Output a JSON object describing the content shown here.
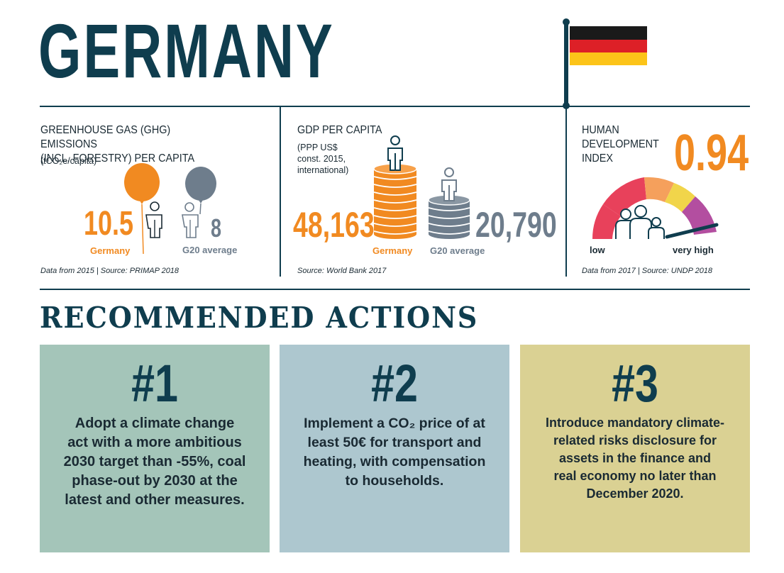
{
  "title": "GERMANY",
  "colors": {
    "navy": "#0f3d4e",
    "orange": "#f18a21",
    "grey": "#6e7d8c"
  },
  "ghg": {
    "heading": "GREENHOUSE GAS (GHG) EMISSIONS\n(INCL. FORESTRY) PER CAPITA",
    "unit": "(tCO₂e/capita)",
    "germany_value": "10.5",
    "germany_label": "Germany",
    "g20_value": "8",
    "g20_label": "G20 average",
    "source": "Data from 2015 | Source: PRIMAP 2018"
  },
  "gdp": {
    "heading": "GDP PER CAPITA",
    "unit": "(PPP US$\nconst. 2015,\ninternational)",
    "germany_value": "48,163",
    "germany_label": "Germany",
    "g20_value": "20,790",
    "g20_label": "G20 average",
    "source": "Source: World Bank 2017"
  },
  "hdi": {
    "heading": "HUMAN\nDEVELOPMENT\nINDEX",
    "value": "0.94",
    "gauge_level": 0.94,
    "low_label": "low",
    "high_label": "very high",
    "source": "Data from 2017 | Source: UNDP 2018"
  },
  "actions": {
    "title": "RECOMMENDED ACTIONS",
    "cards": [
      {
        "number": "#1",
        "text": "Adopt a climate change\nact with a more ambitious\n2030 target than -55%, coal\nphase-out by 2030 at the\nlatest and other measures.",
        "color": "#a4c5b9"
      },
      {
        "number": "#2",
        "text": "Implement a CO₂ price of at\nleast 50€ for transport and\nheating, with compensation\nto households.",
        "color": "#adc7cf"
      },
      {
        "number": "#3",
        "text": "Introduce mandatory climate-\nrelated risks disclosure for\nassets in the finance and\nreal economy no later than\nDecember 2020.",
        "color": "#dad193"
      }
    ]
  }
}
